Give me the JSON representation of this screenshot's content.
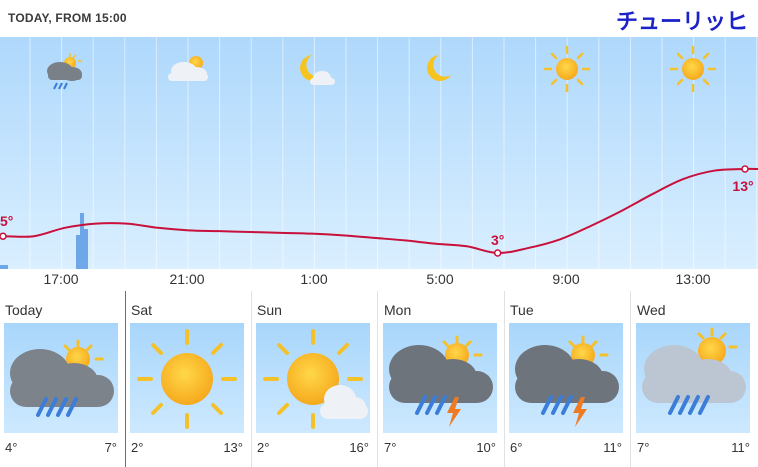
{
  "header": {
    "subtitle": "TODAY, FROM 15:00",
    "city": "チューリッヒ"
  },
  "colors": {
    "accent": "#1a22c8",
    "temp_line": "#c8103a",
    "sky_top": "#aed8fc",
    "sky_bottom": "#daefff"
  },
  "hourly": {
    "icons": [
      "cloud-rain-sun-icon",
      "cloud-sun-icon",
      "moon-cloud-icon",
      "moon-icon",
      "sun-icon",
      "sun-icon"
    ],
    "temp_labels": [
      "5°",
      "3°",
      "13°"
    ],
    "x_ticks": [
      "17:00",
      "21:00",
      "1:00",
      "5:00",
      "9:00",
      "13:00"
    ]
  },
  "chart_data": {
    "type": "line",
    "x": [
      "15:00",
      "16:00",
      "17:00",
      "18:00",
      "19:00",
      "20:00",
      "21:00",
      "22:00",
      "23:00",
      "0:00",
      "1:00",
      "2:00",
      "3:00",
      "4:00",
      "5:00",
      "6:00",
      "7:00",
      "8:00",
      "9:00",
      "10:00",
      "11:00",
      "12:00",
      "13:00",
      "14:00",
      "15:00"
    ],
    "values": [
      5,
      5,
      6,
      6.5,
      6.5,
      6,
      5.7,
      5.6,
      5.5,
      5.4,
      5.3,
      5.1,
      4.8,
      4.5,
      4.1,
      3.8,
      3,
      3.6,
      4.6,
      6.2,
      8,
      10,
      11.8,
      12.8,
      13
    ],
    "annotations": [
      {
        "x": "15:00",
        "label": "5°"
      },
      {
        "x": "7:00",
        "label": "3°"
      },
      {
        "x": "15:00",
        "label": "13°"
      }
    ],
    "precipitation": [
      1,
      0,
      6,
      0,
      0
    ]
  },
  "days": [
    {
      "name": "Today",
      "icon": "cloud-rain-sun-icon",
      "min": "4°",
      "max": "7°",
      "selected": true
    },
    {
      "name": "Sat",
      "icon": "sun-icon",
      "min": "2°",
      "max": "13°"
    },
    {
      "name": "Sun",
      "icon": "sun-cloud-icon",
      "min": "2°",
      "max": "16°"
    },
    {
      "name": "Mon",
      "icon": "thunderstorm-sun-icon",
      "min": "7°",
      "max": "10°"
    },
    {
      "name": "Tue",
      "icon": "thunderstorm-sun-icon",
      "min": "6°",
      "max": "11°"
    },
    {
      "name": "Wed",
      "icon": "rain-sun-icon",
      "min": "7°",
      "max": "11°"
    }
  ]
}
